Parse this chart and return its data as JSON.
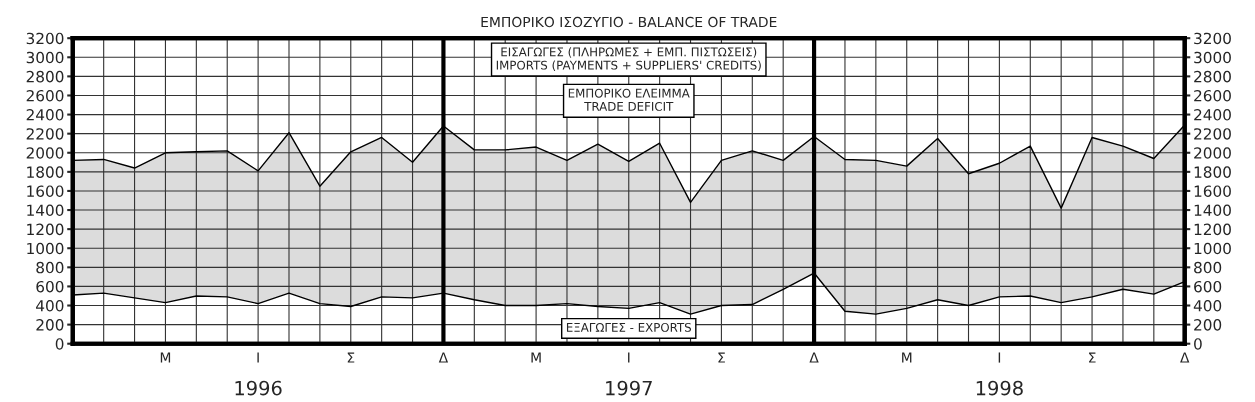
{
  "chart_data": {
    "type": "area",
    "title": "ΕΜΠΟΡΙΚΟ ΙΣΟΖΥΓΙΟ - BALANCE OF TRADE",
    "categories": [
      null,
      null,
      null,
      "Μ",
      null,
      null,
      "Ι",
      null,
      null,
      "Σ",
      null,
      null,
      "Δ",
      null,
      null,
      "Μ",
      null,
      null,
      "Ι",
      null,
      null,
      "Σ",
      null,
      null,
      "Δ",
      null,
      null,
      "Μ",
      null,
      null,
      "Ι",
      null,
      null,
      "Σ",
      null,
      null,
      "Δ"
    ],
    "series": [
      {
        "type": "line",
        "color": "#000000",
        "values": [
          510,
          530,
          480,
          430,
          500,
          490,
          420,
          530,
          420,
          390,
          490,
          480,
          530,
          460,
          400,
          400,
          420,
          390,
          370,
          430,
          310,
          400,
          410,
          570,
          740,
          340,
          310,
          370,
          460,
          400,
          490,
          500,
          430,
          490,
          570,
          520,
          650
        ]
      },
      {
        "color": "#dcdcdc",
        "values": [
          1920,
          1930,
          1840,
          2000,
          2010,
          2020,
          1810,
          2210,
          1650,
          2010,
          2160,
          1900,
          2280,
          2030,
          2030,
          2060,
          1920,
          2090,
          1910,
          2100,
          1480,
          1920,
          2020,
          1920,
          2170,
          1930,
          1920,
          1860,
          2150,
          1780,
          1890,
          2070,
          1420,
          2160,
          2070,
          1940,
          2290
        ]
      }
    ],
    "ylim": [
      0,
      3200
    ],
    "yticks": [
      0,
      200,
      400,
      600,
      800,
      1000,
      1200,
      1400,
      1600,
      1800,
      2000,
      2200,
      2400,
      2600,
      2800,
      3000,
      3200
    ],
    "y2lim": [
      0,
      3200
    ],
    "y2ticks": [
      0,
      200,
      400,
      600,
      800,
      1000,
      1200,
      1400,
      1600,
      1800,
      2000,
      2200,
      2400,
      2600,
      2800,
      3000,
      3200
    ],
    "grid": true,
    "annotations": [
      "ΕΙΣΑΓΩΓΕΣ (ΠΛΗΡΩΜΕΣ + ΕΜΠ. ΠΙΣΤΩΣΕΙΣ)\nIMPORTS (PAYMENTS + SUPPLIERS' CREDITS)",
      "ΕΜΠΟΡΙΚΟ ΕΛΕΙΜΜΑ\nTRADE DEFICIT",
      "ΕΞΑΓΩΓΕΣ - EXPORTS",
      "1996",
      "1997",
      "1998"
    ]
  }
}
